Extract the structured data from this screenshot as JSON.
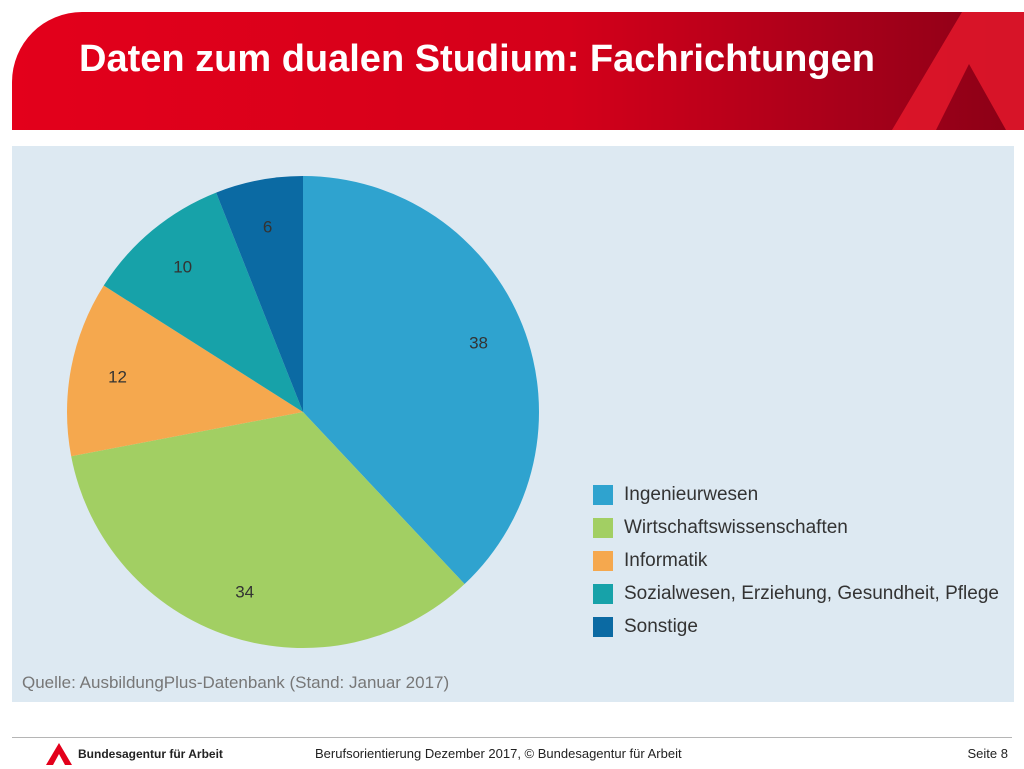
{
  "slide": {
    "title": "Daten zum dualen Studium: Fachrichtungen",
    "source": "Quelle: AusbildungPlus-Datenbank (Stand: Januar 2017)"
  },
  "footer": {
    "brand": "Bundesagentur für Arbeit",
    "center": "Berufsorientierung Dezember 2017, © Bundesagentur für Arbeit",
    "page": "Seite 8"
  },
  "colors": {
    "header_red": "#e3001b",
    "panel_bg": "#dde9f2"
  },
  "chart_data": {
    "type": "pie",
    "title": "",
    "categories": [
      "Ingenieurwesen",
      "Wirtschaftswissenschaften",
      "Informatik",
      "Sozialwesen, Erziehung, Gesundheit, Pflege",
      "Sonstige"
    ],
    "values": [
      38,
      34,
      12,
      10,
      6
    ],
    "colors": [
      "#2fa3cf",
      "#a2cf63",
      "#f5a84e",
      "#17a2a9",
      "#0b6aa3"
    ],
    "start": "top",
    "direction": "clockwise",
    "data_labels": true,
    "legend": "bottom-right"
  }
}
